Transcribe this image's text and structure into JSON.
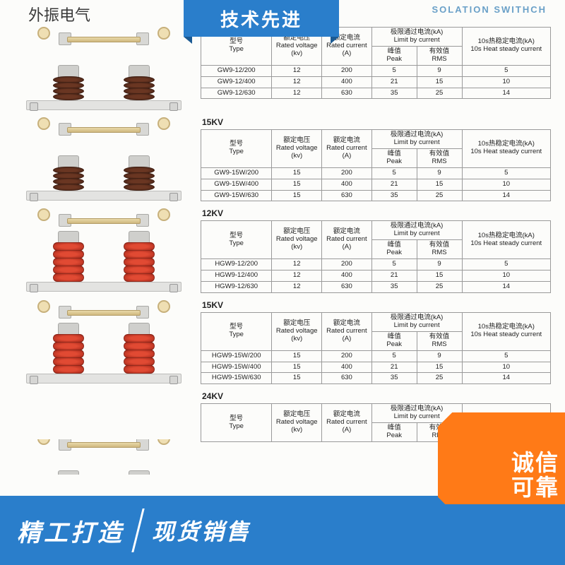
{
  "header": {
    "brand": "外振电气",
    "eng_title": "SOLATION SWITHCH",
    "badge_top": "技术先进"
  },
  "table_header": {
    "type": {
      "cn": "型号",
      "en": "Type"
    },
    "voltage": {
      "cn": "额定电压",
      "en": "Rated voltage",
      "unit": "(kv)"
    },
    "current": {
      "cn": "额定电流",
      "en": "Rated current",
      "unit": "(A)"
    },
    "limit_group": {
      "cn": "极限通过电流(kA)",
      "en": "Limit by current"
    },
    "peak": {
      "cn": "峰值",
      "en": "Peak"
    },
    "rms": {
      "cn": "有效值",
      "en": "RMS"
    },
    "heat": {
      "cn": "10s热稳定电流(kA)",
      "en": "10s Heat steady current"
    }
  },
  "sections": [
    {
      "voltage_label": "",
      "insulator_style": "brown",
      "rows": [
        {
          "type": "GW9-12/200",
          "v": "12",
          "a": "200",
          "peak": "5",
          "rms": "9",
          "heat": "5"
        },
        {
          "type": "GW9-12/400",
          "v": "12",
          "a": "400",
          "peak": "21",
          "rms": "15",
          "heat": "10"
        },
        {
          "type": "GW9-12/630",
          "v": "12",
          "a": "630",
          "peak": "35",
          "rms": "25",
          "heat": "14"
        }
      ]
    },
    {
      "voltage_label": "15KV",
      "insulator_style": "brown",
      "rows": [
        {
          "type": "GW9-15W/200",
          "v": "15",
          "a": "200",
          "peak": "5",
          "rms": "9",
          "heat": "5"
        },
        {
          "type": "GW9-15W/400",
          "v": "15",
          "a": "400",
          "peak": "21",
          "rms": "15",
          "heat": "10"
        },
        {
          "type": "GW9-15W/630",
          "v": "15",
          "a": "630",
          "peak": "35",
          "rms": "25",
          "heat": "14"
        }
      ]
    },
    {
      "voltage_label": "12KV",
      "insulator_style": "red",
      "rows": [
        {
          "type": "HGW9-12/200",
          "v": "12",
          "a": "200",
          "peak": "5",
          "rms": "9",
          "heat": "5"
        },
        {
          "type": "HGW9-12/400",
          "v": "12",
          "a": "400",
          "peak": "21",
          "rms": "15",
          "heat": "10"
        },
        {
          "type": "HGW9-12/630",
          "v": "12",
          "a": "630",
          "peak": "35",
          "rms": "25",
          "heat": "14"
        }
      ]
    },
    {
      "voltage_label": "15KV",
      "insulator_style": "red",
      "rows": [
        {
          "type": "HGW9-15W/200",
          "v": "15",
          "a": "200",
          "peak": "5",
          "rms": "9",
          "heat": "5"
        },
        {
          "type": "HGW9-15W/400",
          "v": "15",
          "a": "400",
          "peak": "21",
          "rms": "15",
          "heat": "10"
        },
        {
          "type": "HGW9-15W/630",
          "v": "15",
          "a": "630",
          "peak": "35",
          "rms": "25",
          "heat": "14"
        }
      ]
    },
    {
      "voltage_label": "24KV",
      "insulator_style": "partial",
      "rows": []
    }
  ],
  "corner_badge": {
    "line1": "诚信",
    "line2": "可靠"
  },
  "banner": {
    "left": "精工打造",
    "right": "现货销售"
  },
  "watermark": ""
}
